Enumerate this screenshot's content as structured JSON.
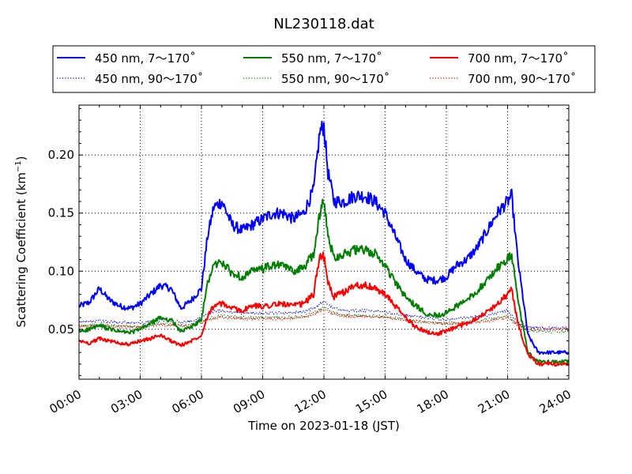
{
  "chart_data": {
    "type": "line",
    "title": "NL230118.dat",
    "xlabel": "Time on 2023-01-18 (JST)",
    "ylabel": {
      "main": "Scattering Coefficient (km",
      "sup": "−1",
      "tail": ")"
    },
    "x_unit": "hours",
    "xlim": [
      0,
      24
    ],
    "ylim": [
      0.007,
      0.243
    ],
    "x_ticks": [
      0,
      3,
      6,
      9,
      12,
      15,
      18,
      21,
      24
    ],
    "x_tick_labels": [
      "00:00",
      "03:00",
      "06:00",
      "09:00",
      "12:00",
      "15:00",
      "18:00",
      "21:00",
      "24:00"
    ],
    "y_ticks": [
      0.05,
      0.1,
      0.15,
      0.2
    ],
    "y_tick_labels": [
      "0.05",
      "0.10",
      "0.15",
      "0.20"
    ],
    "grid": true,
    "legend_placement": "top (above plot, 3 columns)",
    "series": [
      {
        "name": "450 nm, 7～170˚",
        "color": "#0000ff",
        "style": "solid",
        "x": [
          0,
          0.5,
          1,
          1.5,
          2,
          2.5,
          3,
          3.5,
          4,
          4.5,
          5,
          5.5,
          6,
          6.3,
          6.6,
          7,
          7.5,
          8,
          8.5,
          9,
          9.5,
          10,
          10.5,
          11,
          11.5,
          11.8,
          12,
          12.2,
          12.5,
          13,
          13.5,
          14,
          14.5,
          15,
          15.5,
          16,
          16.5,
          17,
          17.5,
          18,
          18.5,
          19,
          19.5,
          20,
          20.5,
          21,
          21.2,
          21.5,
          22,
          22.5,
          23,
          23.5,
          24
        ],
        "y": [
          0.07,
          0.073,
          0.085,
          0.075,
          0.07,
          0.068,
          0.072,
          0.08,
          0.088,
          0.085,
          0.068,
          0.075,
          0.085,
          0.13,
          0.155,
          0.16,
          0.14,
          0.135,
          0.14,
          0.145,
          0.15,
          0.15,
          0.145,
          0.15,
          0.17,
          0.22,
          0.225,
          0.185,
          0.16,
          0.16,
          0.165,
          0.165,
          0.16,
          0.15,
          0.13,
          0.11,
          0.1,
          0.093,
          0.092,
          0.095,
          0.105,
          0.11,
          0.12,
          0.135,
          0.15,
          0.16,
          0.165,
          0.11,
          0.045,
          0.03,
          0.03,
          0.03,
          0.03
        ]
      },
      {
        "name": "550 nm, 7～170˚",
        "color": "#008000",
        "style": "solid",
        "x": [
          0,
          0.5,
          1,
          1.5,
          2,
          2.5,
          3,
          3.5,
          4,
          4.5,
          5,
          5.5,
          6,
          6.3,
          6.6,
          7,
          7.5,
          8,
          8.5,
          9,
          9.5,
          10,
          10.5,
          11,
          11.5,
          11.8,
          12,
          12.2,
          12.5,
          13,
          13.5,
          14,
          14.5,
          15,
          15.5,
          16,
          16.5,
          17,
          17.5,
          18,
          18.5,
          19,
          19.5,
          20,
          20.5,
          21,
          21.2,
          21.5,
          22,
          22.5,
          23,
          23.5,
          24
        ],
        "y": [
          0.048,
          0.05,
          0.053,
          0.05,
          0.048,
          0.047,
          0.05,
          0.055,
          0.06,
          0.058,
          0.048,
          0.052,
          0.058,
          0.09,
          0.105,
          0.108,
          0.098,
          0.095,
          0.1,
          0.102,
          0.105,
          0.105,
          0.1,
          0.103,
          0.115,
          0.15,
          0.16,
          0.13,
          0.112,
          0.115,
          0.118,
          0.118,
          0.115,
          0.105,
          0.09,
          0.078,
          0.07,
          0.064,
          0.062,
          0.064,
          0.07,
          0.075,
          0.083,
          0.092,
          0.103,
          0.11,
          0.115,
          0.075,
          0.03,
          0.022,
          0.022,
          0.022,
          0.022
        ]
      },
      {
        "name": "700 nm, 7～170˚",
        "color": "#ff0000",
        "style": "solid",
        "x": [
          0,
          0.5,
          1,
          1.5,
          2,
          2.5,
          3,
          3.5,
          4,
          4.5,
          5,
          5.5,
          6,
          6.3,
          6.6,
          7,
          7.5,
          8,
          8.5,
          9,
          9.5,
          10,
          10.5,
          11,
          11.5,
          11.8,
          12,
          12.2,
          12.5,
          13,
          13.5,
          14,
          14.5,
          15,
          15.5,
          16,
          16.5,
          17,
          17.5,
          18,
          18.5,
          19,
          19.5,
          20,
          20.5,
          21,
          21.2,
          21.5,
          22,
          22.5,
          23,
          23.5,
          24
        ],
        "y": [
          0.04,
          0.038,
          0.042,
          0.04,
          0.038,
          0.037,
          0.04,
          0.042,
          0.045,
          0.04,
          0.036,
          0.04,
          0.045,
          0.062,
          0.07,
          0.072,
          0.068,
          0.066,
          0.07,
          0.07,
          0.071,
          0.072,
          0.07,
          0.072,
          0.08,
          0.115,
          0.112,
          0.09,
          0.078,
          0.082,
          0.088,
          0.088,
          0.085,
          0.08,
          0.07,
          0.06,
          0.052,
          0.048,
          0.046,
          0.048,
          0.052,
          0.055,
          0.06,
          0.065,
          0.072,
          0.08,
          0.085,
          0.055,
          0.028,
          0.02,
          0.02,
          0.02,
          0.02
        ]
      },
      {
        "name": "450 nm, 90～170˚",
        "color": "#0000ff",
        "style": "dotted",
        "x": [
          0,
          1,
          2,
          3,
          4,
          5,
          5.5,
          6,
          6.5,
          7,
          8,
          9,
          10,
          11,
          11.5,
          12,
          12.5,
          13,
          14,
          15,
          16,
          17,
          18,
          19,
          20,
          21,
          21.5,
          22,
          23,
          24
        ],
        "y": [
          0.056,
          0.057,
          0.056,
          0.055,
          0.058,
          0.056,
          0.057,
          0.06,
          0.065,
          0.066,
          0.064,
          0.064,
          0.064,
          0.065,
          0.068,
          0.074,
          0.068,
          0.066,
          0.066,
          0.065,
          0.062,
          0.06,
          0.058,
          0.06,
          0.062,
          0.066,
          0.056,
          0.052,
          0.051,
          0.051
        ]
      },
      {
        "name": "550 nm, 90～170˚",
        "color": "#008000",
        "style": "dotted",
        "x": [
          0,
          1,
          2,
          3,
          4,
          5,
          5.5,
          6,
          6.5,
          7,
          8,
          9,
          10,
          11,
          11.5,
          12,
          12.5,
          13,
          14,
          15,
          16,
          17,
          18,
          19,
          20,
          21,
          21.5,
          22,
          23,
          24
        ],
        "y": [
          0.053,
          0.054,
          0.053,
          0.052,
          0.055,
          0.053,
          0.054,
          0.057,
          0.06,
          0.062,
          0.06,
          0.06,
          0.06,
          0.061,
          0.064,
          0.069,
          0.064,
          0.062,
          0.062,
          0.061,
          0.058,
          0.056,
          0.055,
          0.056,
          0.058,
          0.062,
          0.054,
          0.049,
          0.048,
          0.048
        ]
      },
      {
        "name": "700 nm, 90～170˚",
        "color": "#ff0000",
        "style": "dotted",
        "x": [
          0,
          1,
          2,
          3,
          4,
          5,
          5.5,
          6,
          6.5,
          7,
          8,
          9,
          10,
          11,
          11.5,
          12,
          12.5,
          13,
          14,
          15,
          16,
          17,
          18,
          19,
          20,
          21,
          21.5,
          22,
          23,
          24
        ],
        "y": [
          0.052,
          0.053,
          0.052,
          0.052,
          0.054,
          0.053,
          0.053,
          0.056,
          0.059,
          0.06,
          0.059,
          0.059,
          0.059,
          0.06,
          0.063,
          0.067,
          0.063,
          0.061,
          0.061,
          0.06,
          0.058,
          0.056,
          0.055,
          0.056,
          0.057,
          0.06,
          0.054,
          0.05,
          0.05,
          0.05
        ]
      }
    ]
  }
}
